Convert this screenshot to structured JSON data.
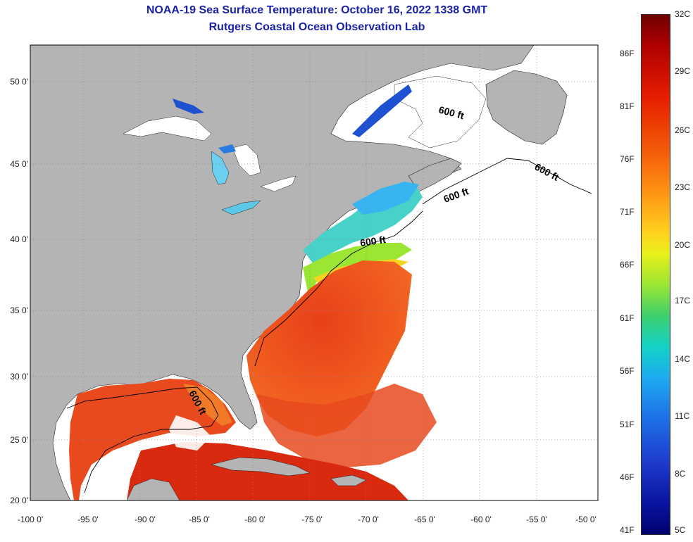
{
  "title": {
    "line1": "NOAA-19 Sea Surface Temperature:  October 16, 2022 1338 GMT",
    "line2": "Rutgers Coastal Ocean Observation Lab"
  },
  "map": {
    "lon_labels": [
      "-100 0'",
      "-95 0'",
      "-90 0'",
      "-85 0'",
      "-80 0'",
      "-75 0'",
      "-70 0'",
      "-65 0'",
      "-60 0'",
      "-55 0'",
      "-50 0'"
    ],
    "lat_labels": [
      "50 0'",
      "45 0'",
      "40 0'",
      "35 0'",
      "30 0'",
      "25 0'",
      "20 0'"
    ],
    "contour_label": "600 ft",
    "colors": {
      "land": "#b4b4b4",
      "no_data": "#ffffff",
      "grid": "#888888"
    }
  },
  "colorbar": {
    "fahrenheit_labels": [
      "86F",
      "81F",
      "76F",
      "71F",
      "66F",
      "61F",
      "56F",
      "51F",
      "46F",
      "41F"
    ],
    "celsius_labels": [
      "32C",
      "29C",
      "26C",
      "23C",
      "20C",
      "17C",
      "14C",
      "11C",
      "8C",
      "5C"
    ]
  }
}
